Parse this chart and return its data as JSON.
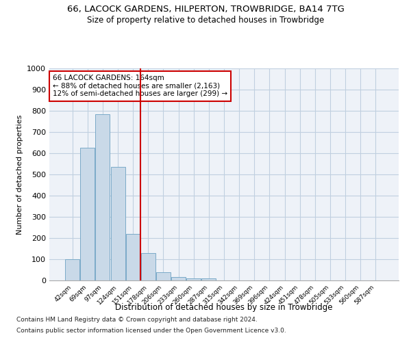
{
  "title": "66, LACOCK GARDENS, HILPERTON, TROWBRIDGE, BA14 7TG",
  "subtitle": "Size of property relative to detached houses in Trowbridge",
  "xlabel": "Distribution of detached houses by size in Trowbridge",
  "ylabel": "Number of detached properties",
  "bar_labels": [
    "42sqm",
    "69sqm",
    "97sqm",
    "124sqm",
    "151sqm",
    "178sqm",
    "206sqm",
    "233sqm",
    "260sqm",
    "287sqm",
    "315sqm",
    "342sqm",
    "369sqm",
    "396sqm",
    "424sqm",
    "451sqm",
    "478sqm",
    "505sqm",
    "533sqm",
    "560sqm",
    "587sqm"
  ],
  "bar_values": [
    100,
    625,
    785,
    535,
    220,
    130,
    40,
    15,
    10,
    10,
    0,
    0,
    0,
    0,
    0,
    0,
    0,
    0,
    0,
    0,
    0
  ],
  "bar_color": "#c9d9e8",
  "bar_edge_color": "#7aaac8",
  "vline_x": 4.5,
  "vline_color": "#cc0000",
  "annotation_line1": "66 LACOCK GARDENS: 164sqm",
  "annotation_line2": "← 88% of detached houses are smaller (2,163)",
  "annotation_line3": "12% of semi-detached houses are larger (299) →",
  "annotation_box_color": "#cc0000",
  "ylim": [
    0,
    1000
  ],
  "yticks": [
    0,
    100,
    200,
    300,
    400,
    500,
    600,
    700,
    800,
    900,
    1000
  ],
  "footnote1": "Contains HM Land Registry data © Crown copyright and database right 2024.",
  "footnote2": "Contains public sector information licensed under the Open Government Licence v3.0.",
  "bg_color": "#eef2f8",
  "grid_color": "#c0cfe0",
  "title_fontsize": 9.5,
  "subtitle_fontsize": 8.5
}
